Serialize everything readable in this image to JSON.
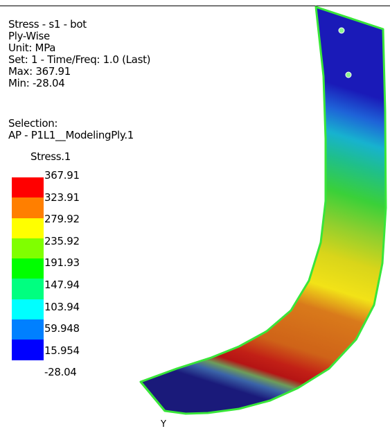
{
  "info": {
    "result": "Stress - s1 - bot",
    "mode": "Ply-Wise",
    "unit": "Unit: MPa",
    "set": "Set: 1 - Time/Freq: 1.0 (Last)",
    "max": "Max: 367.91",
    "min": "Min: -28.04"
  },
  "selection": {
    "heading": "Selection:",
    "name": "AP - P1L1__ModelingPly.1"
  },
  "legend": {
    "title": "Stress.1",
    "values": [
      "367.91",
      "323.91",
      "279.92",
      "235.92",
      "191.93",
      "147.94",
      "103.94",
      "59.948",
      "15.954",
      "-28.04"
    ],
    "colors": [
      "#ff0000",
      "#ff7f00",
      "#ffff00",
      "#80ff00",
      "#00ff00",
      "#00ff80",
      "#00ffff",
      "#0080ff",
      "#0000ff"
    ]
  },
  "axis": {
    "label": "Y"
  }
}
